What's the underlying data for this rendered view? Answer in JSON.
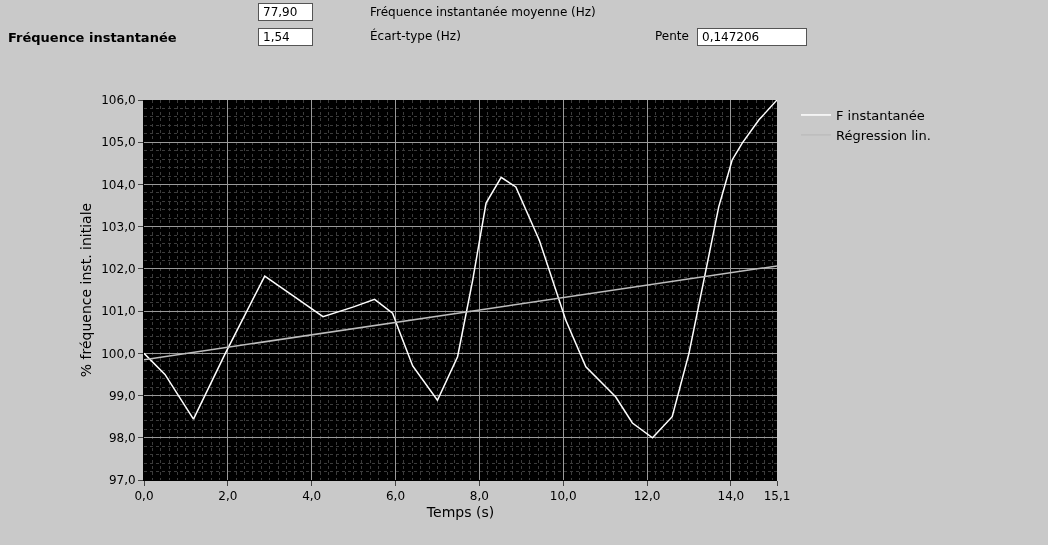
{
  "chart_data": {
    "type": "line",
    "title": "Fréquence instantanée",
    "xlabel": "Temps (s)",
    "ylabel": "% fréquence inst. initiale",
    "annotations": [
      "77,90",
      "Fréquence instantanée moyenne (Hz)",
      "1,54",
      "Écart-type (Hz)",
      "Pente",
      "0,147206"
    ],
    "series": [
      {
        "name": "F instantanée",
        "color": "#ffffff",
        "x": [
          0,
          0.5,
          1.18,
          1.94,
          2.88,
          3.5,
          4.27,
          5.0,
          5.5,
          5.93,
          6.1,
          6.41,
          7.0,
          7.48,
          7.84,
          8.16,
          8.52,
          8.87,
          9.43,
          10.06,
          10.54,
          11.25,
          11.65,
          12.13,
          12.6,
          13.0,
          13.39,
          13.71,
          14.03,
          14.27,
          14.67,
          15.1
        ],
        "values": [
          100.0,
          99.5,
          98.44,
          100.0,
          101.83,
          101.4,
          100.87,
          101.1,
          101.28,
          100.95,
          100.5,
          99.7,
          98.89,
          99.92,
          101.73,
          103.56,
          104.17,
          103.94,
          102.68,
          100.79,
          99.68,
          98.97,
          98.35,
          98.0,
          98.5,
          100.0,
          101.9,
          103.47,
          104.58,
          104.98,
          105.53,
          106.0
        ]
      },
      {
        "name": "Régression lin.",
        "color": "#bdbdbd",
        "x": [
          0,
          15.1
        ],
        "values": [
          99.85,
          102.07
        ]
      }
    ],
    "xlim": [
      0,
      15.1
    ],
    "xticks": [
      {
        "value": 0,
        "label": "0,0"
      },
      {
        "value": 2,
        "label": "2,0"
      },
      {
        "value": 4,
        "label": "4,0"
      },
      {
        "value": 6,
        "label": "6,0"
      },
      {
        "value": 8,
        "label": "8,0"
      },
      {
        "value": 10,
        "label": "10,0"
      },
      {
        "value": 12,
        "label": "12,0"
      },
      {
        "value": 14,
        "label": "14,0"
      },
      {
        "value": 15.1,
        "label": "15,1"
      }
    ],
    "ylim": [
      97,
      106
    ],
    "yticks": [
      {
        "value": 97,
        "label": "97,0"
      },
      {
        "value": 98,
        "label": "98,0"
      },
      {
        "value": 99,
        "label": "99,0"
      },
      {
        "value": 100,
        "label": "100,0"
      },
      {
        "value": 101,
        "label": "101,0"
      },
      {
        "value": 102,
        "label": "102,0"
      },
      {
        "value": 103,
        "label": "103,0"
      },
      {
        "value": 104,
        "label": "104,0"
      },
      {
        "value": 105,
        "label": "105,0"
      },
      {
        "value": 106,
        "label": "106,0"
      }
    ],
    "grid": true,
    "legend": "top right",
    "marker": "none",
    "line_style": "solid"
  }
}
